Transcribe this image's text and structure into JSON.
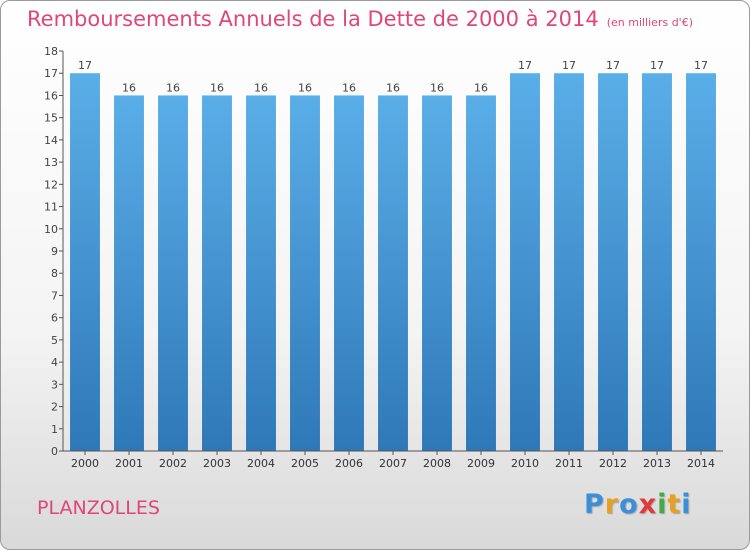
{
  "chart_data": {
    "type": "bar",
    "title": "Remboursements Annuels de la Dette de 2000 à 2014",
    "subtitle": "(en milliers d'€)",
    "categories": [
      "2000",
      "2001",
      "2002",
      "2003",
      "2004",
      "2005",
      "2006",
      "2007",
      "2008",
      "2009",
      "2010",
      "2011",
      "2012",
      "2013",
      "2014"
    ],
    "values": [
      17,
      16,
      16,
      16,
      16,
      16,
      16,
      16,
      16,
      16,
      17,
      17,
      17,
      17,
      17
    ],
    "ylim": [
      0,
      18
    ],
    "yticks": [
      0,
      1,
      2,
      3,
      4,
      5,
      6,
      7,
      8,
      9,
      10,
      11,
      12,
      13,
      14,
      15,
      16,
      17,
      18
    ],
    "grid": false,
    "bar_color_top": "#5aaee8",
    "bar_color_bottom": "#2f78b8"
  },
  "footer": {
    "place": "PLANZOLLES",
    "logo_letters": [
      {
        "ch": "P",
        "color": "#3a8fd8"
      },
      {
        "ch": "r",
        "color": "#e8a020"
      },
      {
        "ch": "o",
        "color": "#3a8fd8"
      },
      {
        "ch": "x",
        "color": "#e03a3a"
      },
      {
        "ch": "i",
        "color": "#44aa44"
      },
      {
        "ch": "t",
        "color": "#e8a020"
      },
      {
        "ch": "i",
        "color": "#3a8fd8"
      }
    ]
  }
}
